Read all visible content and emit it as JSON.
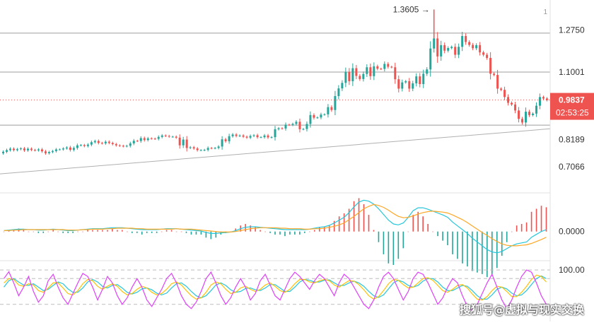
{
  "colors": {
    "up": "#26a69a",
    "down": "#ef5350",
    "price_badge": "#ef5350",
    "line_gray": "#9e9e9e",
    "macd": "#26c6da",
    "signal": "#ffa726",
    "stoch_k": "#e040fb",
    "stoch_d": "#ffc107",
    "stoch_j": "#26c6da"
  },
  "chart_data": [
    {
      "type": "candlestick",
      "panel": "price",
      "y_ticks": [
        "1.2750",
        "1.1001",
        "0.8189",
        "0.7066"
      ],
      "y_tick_values": [
        1.275,
        1.1001,
        0.8189,
        0.7066
      ],
      "ylim": [
        0.6,
        1.4
      ],
      "max_marker": "1.3605",
      "current_price": "0.9837",
      "countdown": "02:53:25",
      "corner_mark": "1",
      "horizontal_levels": [
        1.262,
        1.1001,
        0.879
      ],
      "trendline": {
        "from": 0.676,
        "to": 0.864
      },
      "candle_count": 155,
      "closes": [
        0.768,
        0.775,
        0.781,
        0.775,
        0.779,
        0.782,
        0.774,
        0.781,
        0.776,
        0.774,
        0.778,
        0.77,
        0.762,
        0.767,
        0.771,
        0.778,
        0.778,
        0.782,
        0.786,
        0.776,
        0.784,
        0.795,
        0.796,
        0.792,
        0.798,
        0.808,
        0.813,
        0.805,
        0.803,
        0.81,
        0.805,
        0.8,
        0.795,
        0.793,
        0.791,
        0.793,
        0.803,
        0.814,
        0.813,
        0.825,
        0.817,
        0.824,
        0.823,
        0.822,
        0.83,
        0.836,
        0.834,
        0.831,
        0.831,
        0.827,
        0.795,
        0.819,
        0.784,
        0.787,
        0.782,
        0.775,
        0.775,
        0.776,
        0.784,
        0.783,
        0.784,
        0.79,
        0.82,
        0.812,
        0.833,
        0.84,
        0.834,
        0.836,
        0.831,
        0.827,
        0.834,
        0.837,
        0.829,
        0.829,
        0.836,
        0.828,
        0.829,
        0.862,
        0.866,
        0.865,
        0.881,
        0.88,
        0.884,
        0.893,
        0.862,
        0.863,
        0.884,
        0.921,
        0.91,
        0.911,
        0.923,
        0.924,
        0.954,
        0.942,
        1.0,
        1.032,
        1.055,
        1.101,
        1.062,
        1.116,
        1.084,
        1.071,
        1.092,
        1.12,
        1.083,
        1.124,
        1.114,
        1.113,
        1.134,
        1.122,
        1.12,
        1.07,
        1.031,
        1.057,
        1.062,
        1.031,
        1.053,
        1.082,
        1.05,
        1.093,
        1.111,
        1.198,
        1.24,
        1.165,
        1.212,
        1.189,
        1.2,
        1.205,
        1.172,
        1.205,
        1.25,
        1.225,
        1.213,
        1.199,
        1.212,
        1.182,
        1.172,
        1.159,
        1.093,
        1.088,
        1.031,
        1.026,
        0.996,
        0.972,
        0.965,
        0.94,
        0.905,
        0.89,
        0.935,
        0.921,
        0.927,
        0.96,
        0.996,
        0.99,
        0.9837
      ]
    },
    {
      "type": "macd",
      "panel": "macd",
      "y_ticks": [
        "0.0000"
      ],
      "y_tick_values": [
        0
      ],
      "ylim": [
        -0.06,
        0.08
      ],
      "macd": [
        0.002,
        0.003,
        0.004,
        0.005,
        0.005,
        0.004,
        0.004,
        0.003,
        0.003,
        0.004,
        0.005,
        0.004,
        0.003,
        0.002,
        0.002,
        0.003,
        0.004,
        0.005,
        0.006,
        0.006,
        0.006,
        0.007,
        0.008,
        0.008,
        0.008,
        0.007,
        0.006,
        0.005,
        0.004,
        0.004,
        0.004,
        0.004,
        0.005,
        0.006,
        0.006,
        0.006,
        0.005,
        0.004,
        0.003,
        0.002,
        0.001,
        -0.002,
        -0.004,
        -0.004,
        -0.003,
        -0.002,
        -0.001,
        0.002,
        0.006,
        0.009,
        0.01,
        0.01,
        0.009,
        0.008,
        0.007,
        0.006,
        0.005,
        0.004,
        0.004,
        0.004,
        0.004,
        0.004,
        0.005,
        0.007,
        0.009,
        0.01,
        0.013,
        0.018,
        0.024,
        0.03,
        0.04,
        0.052,
        0.062,
        0.066,
        0.064,
        0.058,
        0.048,
        0.036,
        0.024,
        0.016,
        0.014,
        0.018,
        0.03,
        0.044,
        0.05,
        0.05,
        0.047,
        0.043,
        0.039,
        0.035,
        0.03,
        0.02,
        0.012,
        0.004,
        -0.004,
        -0.014,
        -0.022,
        -0.03,
        -0.038,
        -0.043,
        -0.045,
        -0.042,
        -0.036,
        -0.03,
        -0.026,
        -0.024,
        -0.022,
        -0.012,
        -0.006,
        0.0,
        0.004
      ],
      "signal": [
        0.002,
        0.002,
        0.003,
        0.003,
        0.004,
        0.004,
        0.004,
        0.004,
        0.004,
        0.004,
        0.004,
        0.004,
        0.004,
        0.003,
        0.003,
        0.003,
        0.004,
        0.004,
        0.005,
        0.005,
        0.005,
        0.006,
        0.006,
        0.007,
        0.007,
        0.007,
        0.007,
        0.006,
        0.006,
        0.005,
        0.005,
        0.005,
        0.005,
        0.005,
        0.005,
        0.006,
        0.005,
        0.005,
        0.005,
        0.004,
        0.003,
        0.002,
        0.001,
        0.0,
        -0.001,
        -0.001,
        -0.001,
        0.0,
        0.002,
        0.004,
        0.006,
        0.007,
        0.008,
        0.008,
        0.008,
        0.008,
        0.007,
        0.007,
        0.006,
        0.006,
        0.006,
        0.005,
        0.005,
        0.006,
        0.006,
        0.007,
        0.009,
        0.011,
        0.014,
        0.018,
        0.025,
        0.032,
        0.04,
        0.048,
        0.053,
        0.057,
        0.055,
        0.051,
        0.045,
        0.038,
        0.032,
        0.029,
        0.03,
        0.033,
        0.037,
        0.04,
        0.042,
        0.043,
        0.042,
        0.041,
        0.039,
        0.035,
        0.03,
        0.025,
        0.019,
        0.012,
        0.005,
        -0.002,
        -0.008,
        -0.015,
        -0.021,
        -0.026,
        -0.029,
        -0.03,
        -0.03,
        -0.029,
        -0.028,
        -0.025,
        -0.021,
        -0.017,
        -0.012
      ]
    },
    {
      "type": "stochastic",
      "panel": "kdj",
      "y_ticks": [
        "100.00"
      ],
      "y_tick_values": [
        100
      ],
      "ylim": [
        -20,
        120
      ],
      "reference_levels": [
        100,
        80,
        20
      ],
      "k": [
        80,
        96,
        70,
        40,
        60,
        85,
        50,
        25,
        40,
        75,
        90,
        60,
        35,
        20,
        45,
        70,
        92,
        85,
        60,
        30,
        55,
        85,
        70,
        40,
        20,
        35,
        60,
        80,
        60,
        30,
        15,
        35,
        55,
        80,
        92,
        70,
        40,
        20,
        10,
        25,
        50,
        80,
        95,
        70,
        40,
        20,
        35,
        60,
        80,
        60,
        30,
        45,
        75,
        90,
        65,
        40,
        30,
        55,
        80,
        95,
        85,
        70,
        55,
        75,
        90,
        80,
        60,
        40,
        70,
        90,
        80,
        60,
        40,
        20,
        10,
        30,
        60,
        85,
        95,
        80,
        55,
        30,
        50,
        80,
        95,
        90,
        70,
        45,
        20,
        35,
        60,
        80,
        70,
        40,
        15,
        5,
        20,
        45,
        70,
        90,
        60,
        30,
        10,
        30,
        60,
        85,
        100,
        95,
        70,
        40,
        20
      ],
      "d": [
        70,
        80,
        78,
        65,
        62,
        68,
        65,
        52,
        48,
        58,
        70,
        70,
        58,
        45,
        42,
        52,
        68,
        78,
        75,
        62,
        55,
        62,
        68,
        62,
        50,
        42,
        45,
        55,
        62,
        58,
        48,
        42,
        45,
        55,
        68,
        72,
        65,
        52,
        40,
        32,
        35,
        48,
        65,
        72,
        68,
        55,
        45,
        48,
        58,
        62,
        55,
        50,
        55,
        65,
        70,
        62,
        52,
        48,
        55,
        68,
        78,
        78,
        72,
        70,
        75,
        78,
        75,
        65,
        60,
        68,
        75,
        74,
        66,
        54,
        40,
        32,
        38,
        52,
        68,
        78,
        76,
        66,
        58,
        60,
        70,
        80,
        82,
        76,
        64,
        52,
        48,
        55,
        64,
        66,
        58,
        44,
        32,
        30,
        38,
        52,
        62,
        60,
        50,
        38,
        38,
        48,
        62,
        78,
        88,
        85,
        72
      ],
      "j": [
        60,
        75,
        80,
        72,
        65,
        64,
        68,
        60,
        52,
        55,
        64,
        72,
        68,
        56,
        48,
        48,
        58,
        72,
        78,
        72,
        62,
        58,
        64,
        66,
        58,
        48,
        44,
        48,
        56,
        58,
        54,
        46,
        42,
        46,
        58,
        68,
        70,
        62,
        50,
        40,
        35,
        40,
        52,
        65,
        70,
        64,
        54,
        48,
        50,
        57,
        58,
        54,
        52,
        58,
        66,
        66,
        58,
        50,
        50,
        60,
        72,
        78,
        76,
        72,
        72,
        76,
        77,
        70,
        64,
        64,
        70,
        74,
        70,
        62,
        50,
        40,
        36,
        42,
        56,
        70,
        76,
        72,
        64,
        60,
        64,
        74,
        80,
        80,
        72,
        60,
        52,
        52,
        58,
        64,
        62,
        52,
        40,
        32,
        32,
        42,
        55,
        60,
        56,
        46,
        40,
        42,
        52,
        66,
        80,
        86,
        80
      ]
    }
  ],
  "watermark": "搜狐号@虚拟与现实交换"
}
